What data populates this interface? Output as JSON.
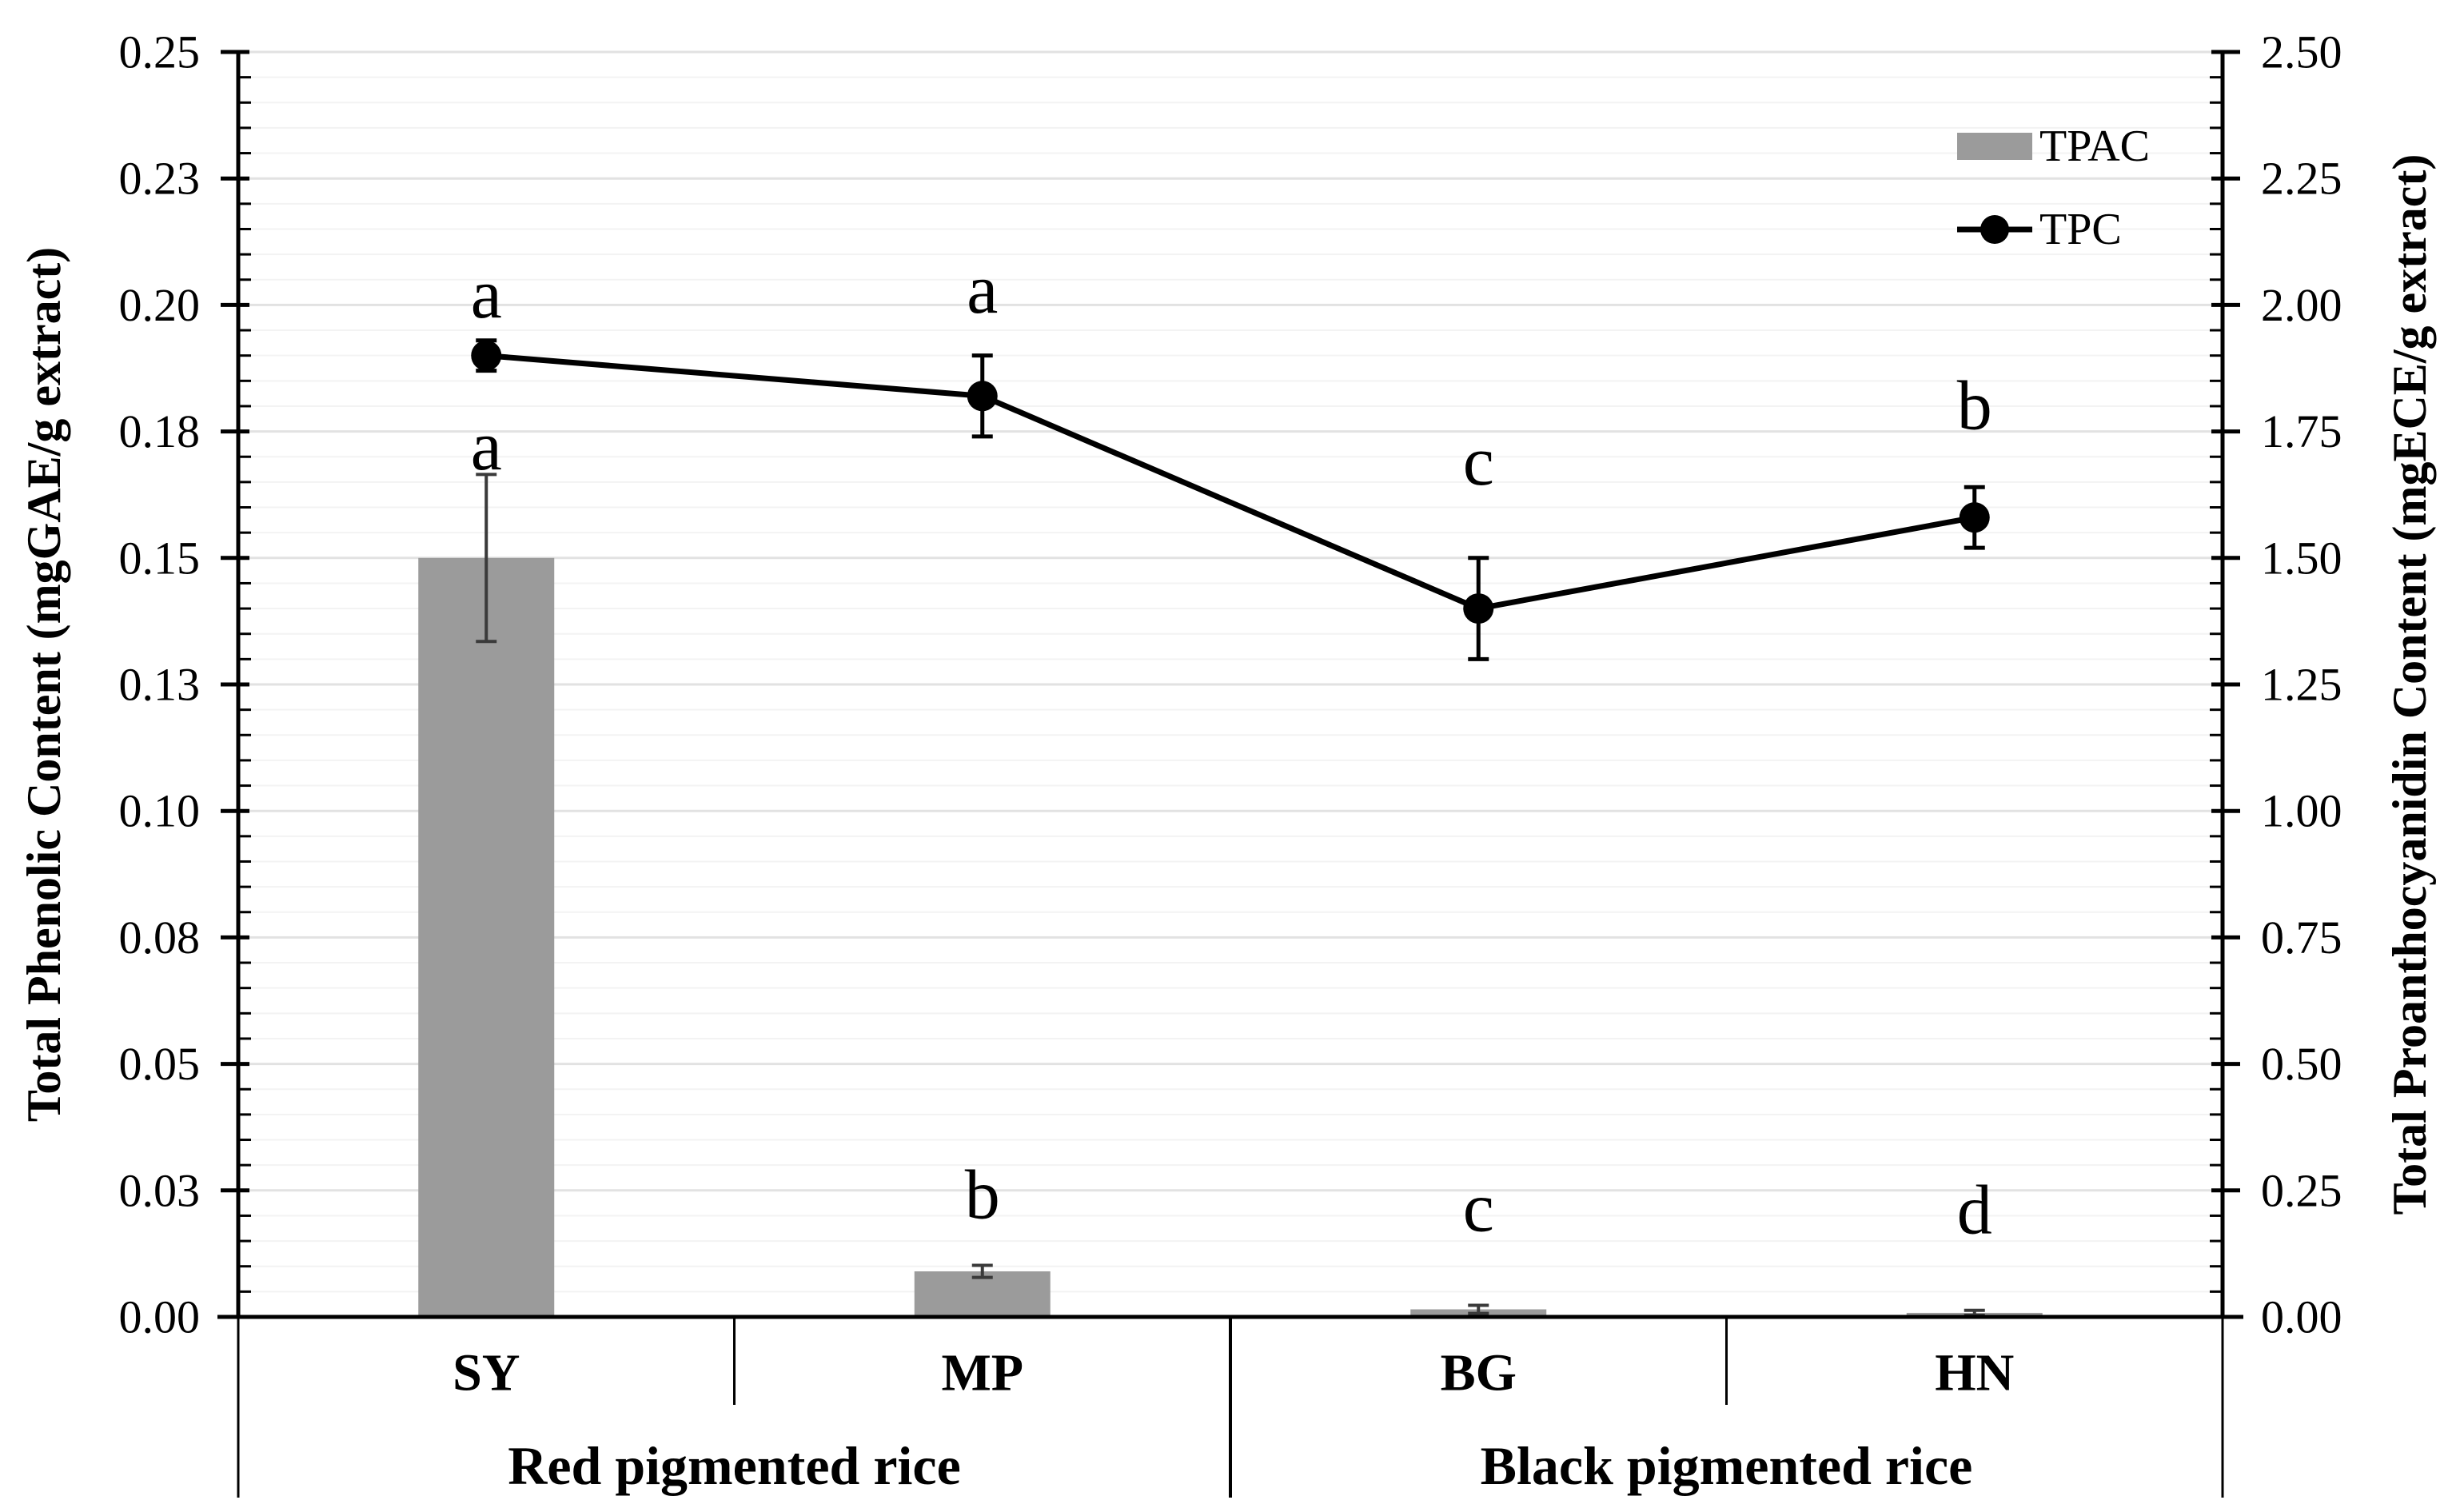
{
  "chart_data": {
    "type": "bar+line-dual-axis",
    "categories": [
      "SY",
      "MP",
      "BG",
      "HN"
    ],
    "groups": [
      {
        "label": "Red pigmented rice",
        "span": [
          "SY",
          "MP"
        ]
      },
      {
        "label": "Black pigmented rice",
        "span": [
          "BG",
          "HN"
        ]
      }
    ],
    "series": [
      {
        "name": "TPAC",
        "type": "bar",
        "axis": "right",
        "color": "#9b9b9b",
        "error_color": "#3a3a3a",
        "values": [
          1.5,
          0.09,
          0.015,
          0.008
        ],
        "errors": [
          0.165,
          0.012,
          0.008,
          0.005
        ],
        "sig_letters": [
          "a",
          "b",
          "c",
          "d"
        ],
        "sig_letter_y_left_axis_units": [
          0.172,
          0.024,
          0.0215,
          0.021
        ]
      },
      {
        "name": "TPC",
        "type": "line",
        "axis": "left",
        "color": "#000000",
        "error_color": "#000000",
        "values": [
          0.19,
          0.182,
          0.14,
          0.158
        ],
        "errors": [
          0.003,
          0.008,
          0.01,
          0.006
        ],
        "sig_letters": [
          "a",
          "a",
          "c",
          "b"
        ],
        "sig_letter_y_left_axis_units": [
          0.202,
          0.203,
          0.169,
          0.18
        ]
      }
    ],
    "left_axis": {
      "title": "Total Phenolic Content (mgGAE/g extract)",
      "min": 0,
      "max": 0.25,
      "major_step": 0.025,
      "minor_step": 0.005,
      "tick_labels": [
        "0.25",
        "0.23",
        "0.20",
        "0.18",
        "0.15",
        "0.13",
        "0.10",
        "0.08",
        "0.05",
        "0.03",
        "0.00"
      ]
    },
    "right_axis": {
      "title": "Total Proanthocyanidin Content (mgECE/g extract)",
      "min": 0,
      "max": 2.5,
      "major_step": 0.25,
      "minor_step": 0.05,
      "tick_labels": [
        "2.50",
        "2.25",
        "2.00",
        "1.75",
        "1.50",
        "1.25",
        "1.00",
        "0.75",
        "0.50",
        "0.25",
        "0.00"
      ]
    },
    "legend": {
      "position": "upper-right-inside",
      "items": [
        {
          "label": "TPAC",
          "glyph": "bar-swatch"
        },
        {
          "label": "TPC",
          "glyph": "line-with-marker"
        }
      ]
    },
    "grid": {
      "horizontal_minor": true,
      "minor_color": "#f3f3f3",
      "major_color": "#e2e2e2"
    }
  }
}
